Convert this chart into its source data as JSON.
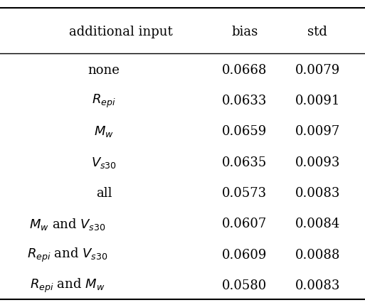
{
  "col_headers": [
    "additional input",
    "bias",
    "std"
  ],
  "row_labels_latex": [
    "none",
    "$R_{epi}$",
    "$M_w$",
    "$V_{s30}$",
    "all",
    "$M_w$ and $V_{s30}$",
    "$R_{epi}$ and $V_{s30}$",
    "$R_{epi}$ and $M_w$"
  ],
  "bias_vals": [
    "0.0668",
    "0.0633",
    "0.0659",
    "0.0635",
    "0.0573",
    "0.0607",
    "0.0609",
    "0.0580"
  ],
  "std_vals": [
    "0.0079",
    "0.0091",
    "0.0097",
    "0.0093",
    "0.0083",
    "0.0084",
    "0.0088",
    "0.0083"
  ],
  "row_labels_indent": [
    true,
    true,
    true,
    true,
    true,
    false,
    false,
    false
  ],
  "background_color": "#ffffff",
  "text_color": "#000000",
  "font_size": 13,
  "header_font_size": 13
}
